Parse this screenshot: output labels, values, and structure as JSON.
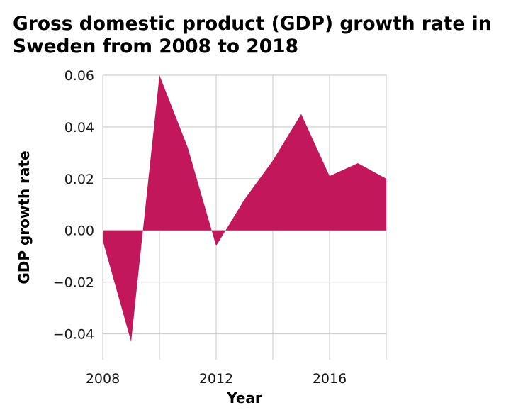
{
  "chart_data": {
    "type": "area",
    "title": "Gross domestic product (GDP) growth rate in Sweden from 2008 to 2018",
    "xlabel": "Year",
    "ylabel": "GDP growth rate",
    "x": [
      2008,
      2009,
      2010,
      2011,
      2012,
      2013,
      2014,
      2015,
      2016,
      2017,
      2018
    ],
    "series": [
      {
        "values": [
          -0.004,
          -0.043,
          0.06,
          0.032,
          -0.006,
          0.012,
          0.027,
          0.045,
          0.021,
          0.026,
          0.02
        ],
        "color": "#c2185b"
      }
    ],
    "xlim": [
      2008,
      2018
    ],
    "ylim": [
      -0.05,
      0.06
    ],
    "x_ticks": [
      2008,
      2012,
      2016
    ],
    "x_tick_labels": [
      "2008",
      "2012",
      "2016"
    ],
    "y_ticks": [
      -0.04,
      -0.02,
      0.0,
      0.02,
      0.04,
      0.06
    ],
    "y_tick_labels": [
      "−0.04",
      "−0.02",
      "0.00",
      "0.02",
      "0.04",
      "0.06"
    ],
    "grid": true,
    "grid_color": "#d0d0d0",
    "background": "#ffffff"
  }
}
